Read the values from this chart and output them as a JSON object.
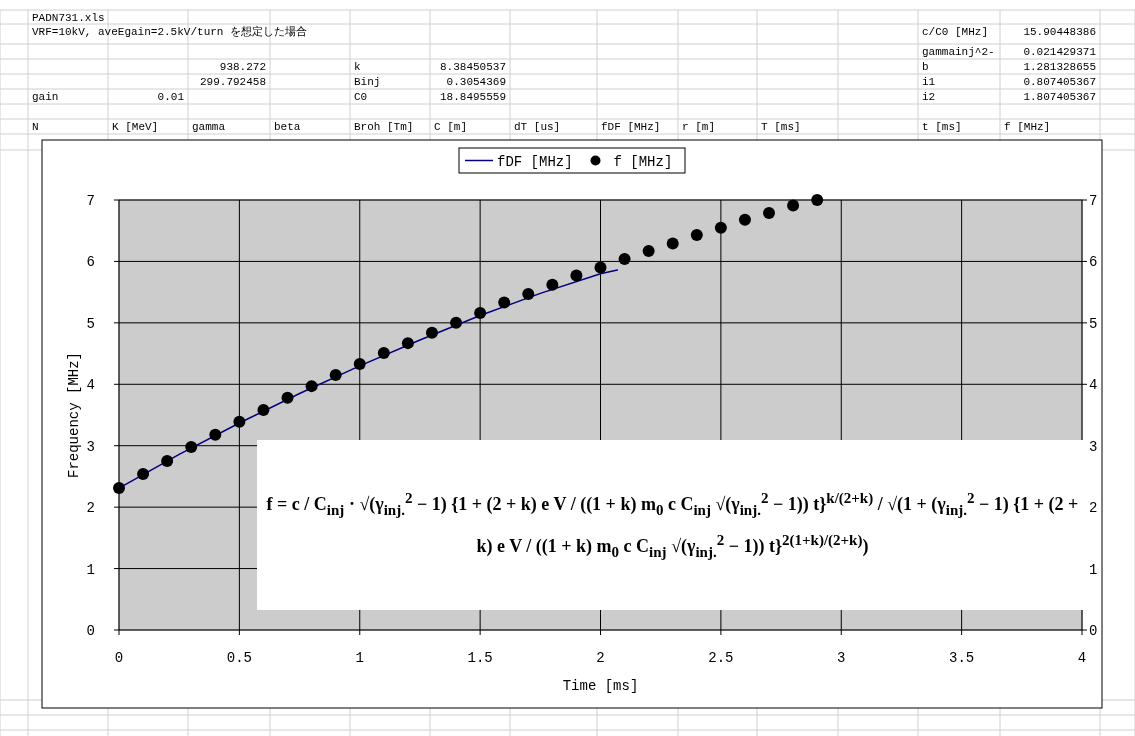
{
  "chart_data": {
    "type": "line",
    "xlabel": "Time [ms]",
    "ylabel": "Frequency [MHz]",
    "xlim": [
      0,
      4
    ],
    "xticks": [
      0,
      0.5,
      1,
      1.5,
      2,
      2.5,
      3,
      3.5,
      4
    ],
    "ylim": [
      0,
      7
    ],
    "yticks": [
      0,
      1,
      2,
      3,
      4,
      5,
      6,
      7
    ],
    "y2lim": [
      0,
      7
    ],
    "y2ticks": [
      0,
      1,
      2,
      3,
      4,
      5,
      6,
      7
    ],
    "grid": true,
    "legend": "top",
    "series": [
      {
        "name": "fDF [MHz]",
        "type": "line",
        "color": "#000080",
        "marker": "none",
        "x": [
          0,
          0.25,
          0.5,
          0.75,
          1,
          1.25,
          1.5,
          1.75,
          2,
          2.07
        ],
        "values": [
          2.31,
          2.86,
          3.37,
          3.85,
          4.3,
          4.72,
          5.12,
          5.48,
          5.8,
          5.86
        ]
      },
      {
        "name": "f [MHz]",
        "type": "scatter",
        "color": "#000000",
        "marker": "circle",
        "x": [
          0,
          0.1,
          0.2,
          0.3,
          0.4,
          0.5,
          0.6,
          0.7,
          0.8,
          0.9,
          1,
          1.1,
          1.2,
          1.3,
          1.4,
          1.5,
          1.6,
          1.7,
          1.8,
          1.9,
          2,
          2.1,
          2.2,
          2.3,
          2.4,
          2.5,
          2.6,
          2.7,
          2.8,
          2.9
        ],
        "values": [
          2.31,
          2.54,
          2.75,
          2.98,
          3.18,
          3.39,
          3.58,
          3.78,
          3.97,
          4.15,
          4.33,
          4.51,
          4.67,
          4.84,
          5.0,
          5.16,
          5.33,
          5.47,
          5.62,
          5.77,
          5.9,
          6.04,
          6.17,
          6.29,
          6.43,
          6.55,
          6.68,
          6.79,
          6.91,
          7.0
        ]
      }
    ],
    "annotations": [
      "PADN731.xls",
      "VRF=10kV, aveEgain=2.5kV/turn を想定した場合",
      "c/C0 [MHz]",
      "15.90448386",
      "gammainj^2-",
      "0.021429371",
      "938.272",
      "k",
      "8.38450537",
      "b",
      "1.281328655",
      "299.792458",
      "Binj",
      "0.3054369",
      "i1",
      "0.807405367",
      "gain",
      "0.01",
      "C0",
      "18.8495559",
      "i2",
      "1.807405367",
      "N",
      "K [MeV]",
      "gamma",
      "beta",
      "Broh [Tm]",
      "C [m]",
      "dT [us]",
      "fDF [MHz]",
      "r [m]",
      "T [ms]",
      "t [ms]",
      "f [MHz]",
      "f = c / C$_{inj}$ · √(γ$_{inj.}$$^{2}$ − 1) {1 + (2 + k) e V / ((1 + k) m$_{0}$ c C$_{inj}$ √(γ$_{inj.}$$^{2}$ − 1)) t}$^{k/(2+k)}$ / √(1 + (γ$_{inj.}$$^{2}$ − 1) {1 + (2 + k) e V / ((1 + k) m$_{0}$ c C$_{inj}$ √(γ$_{inj.}$$^{2}$ − 1)) t}$^{2(1+k)/(2+k)}$)"
    ]
  }
}
